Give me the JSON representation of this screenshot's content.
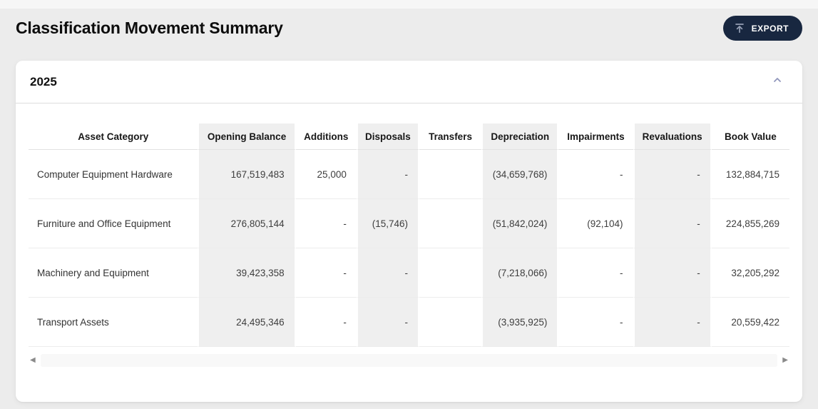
{
  "page": {
    "title": "Classification Movement Summary"
  },
  "toolbar": {
    "export_label": "EXPORT",
    "export_icon": "tray-arrow-up"
  },
  "panel": {
    "year": "2025",
    "collapse_icon": "chevron-up"
  },
  "table": {
    "columns": [
      {
        "label": "Asset Category",
        "shaded": false,
        "align": "left"
      },
      {
        "label": "Opening Balance",
        "shaded": true,
        "align": "right"
      },
      {
        "label": "Additions",
        "shaded": false,
        "align": "right"
      },
      {
        "label": "Disposals",
        "shaded": true,
        "align": "right"
      },
      {
        "label": "Transfers",
        "shaded": false,
        "align": "right"
      },
      {
        "label": "Depreciation",
        "shaded": true,
        "align": "right"
      },
      {
        "label": "Impairments",
        "shaded": false,
        "align": "right"
      },
      {
        "label": "Revaluations",
        "shaded": true,
        "align": "right"
      },
      {
        "label": "Book Value",
        "shaded": false,
        "align": "right"
      }
    ],
    "rows": [
      {
        "category": "Computer Equipment Hardware",
        "values": [
          "167,519,483",
          "25,000",
          "-",
          "",
          "(34,659,768)",
          "-",
          "-",
          "132,884,715"
        ]
      },
      {
        "category": "Furniture and Office Equipment",
        "values": [
          "276,805,144",
          "-",
          "(15,746)",
          "",
          "(51,842,024)",
          "(92,104)",
          "-",
          "224,855,269"
        ]
      },
      {
        "category": "Machinery and Equipment",
        "values": [
          "39,423,358",
          "-",
          "-",
          "",
          "(7,218,066)",
          "-",
          "-",
          "32,205,292"
        ]
      },
      {
        "category": "Transport Assets",
        "values": [
          "24,495,346",
          "-",
          "-",
          "",
          "(3,935,925)",
          "-",
          "-",
          "20,559,422"
        ]
      }
    ]
  },
  "scrollbar": {
    "left_glyph": "◀",
    "right_glyph": "▶"
  },
  "colors": {
    "export_button_bg": "#182740",
    "shaded_column_bg": "#efefef",
    "card_bg": "#ffffff",
    "page_bg": "#ececec",
    "icon_muted": "#96a0b5",
    "chevron": "#9096bb"
  }
}
